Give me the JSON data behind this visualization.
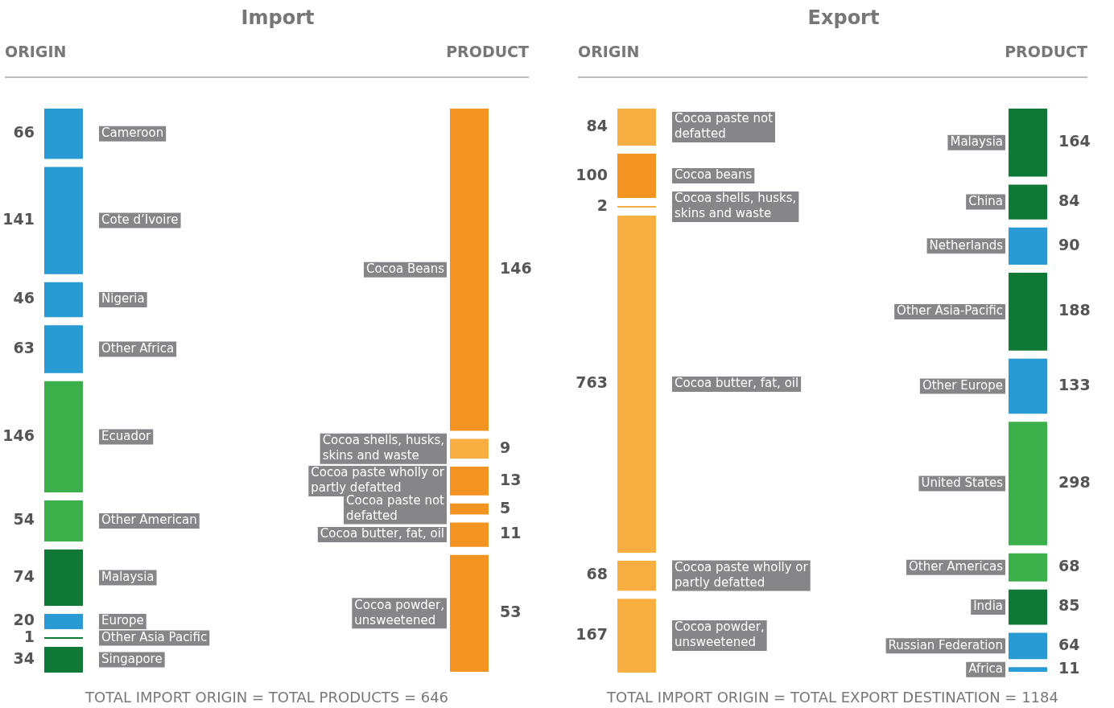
{
  "chart_data": [
    {
      "type": "other",
      "title": "Import",
      "data_labels": true,
      "categories": [
        "Cameroon",
        "Cote d’Ivoire",
        "Nigeria",
        "Other Africa",
        "Ecuador",
        "Other American",
        "Malaysia",
        "Europe",
        "Other Asia Pacific",
        "Singapore",
        "Cocoa Beans",
        "Cocoa shells, husks, skins and waste",
        "Cocoa paste wholly or partly defatted",
        "Cocoa paste not defatted",
        "Cocoa butter, fat, oil",
        "Cocoa powder, unsweetened"
      ],
      "series": [
        {
          "name": "ORIGIN",
          "values": [
            66,
            141,
            46,
            63,
            146,
            54,
            74,
            20,
            1,
            34,
            null,
            null,
            null,
            null,
            null,
            null
          ],
          "colors": [
            "#2a9ad4",
            "#2a9ad4",
            "#2a9ad4",
            "#2a9ad4",
            "#3bb04a",
            "#3bb04a",
            "#0f7a35",
            "#2a9ad4",
            "#0f7a35",
            "#0f7a35",
            null,
            null,
            null,
            null,
            null,
            null
          ]
        },
        {
          "name": "PRODUCT",
          "values": [
            null,
            null,
            null,
            null,
            null,
            null,
            null,
            null,
            null,
            null,
            146,
            9,
            13,
            5,
            11,
            53
          ],
          "colors": [
            null,
            null,
            null,
            null,
            null,
            null,
            null,
            null,
            null,
            null,
            "#f39321",
            "#f9ae42",
            "#f39321",
            "#f39321",
            "#f39321",
            "#f39321"
          ]
        }
      ],
      "annotations": [
        "TOTAL IMPORT ORIGIN = TOTAL PRODUCTS = 646"
      ]
    },
    {
      "type": "other",
      "title": "Export",
      "data_labels": true,
      "categories": [
        "Cocoa paste not defatted",
        "Cocoa beans",
        "Cocoa shells, husks, skins and waste",
        "Cocoa butter, fat, oil",
        "Cocoa paste wholly or partly defatted",
        "Cocoa powder, unsweetened",
        "Malaysia",
        "China",
        "Netherlands",
        "Other Asia-Pacific",
        "Other Europe",
        "United States",
        "Other Americas",
        "India",
        "Russian Federation",
        "Africa"
      ],
      "series": [
        {
          "name": "ORIGIN",
          "values": [
            84,
            100,
            2,
            763,
            68,
            167,
            null,
            null,
            null,
            null,
            null,
            null,
            null,
            null,
            null,
            null
          ],
          "colors": [
            "#f9ae42",
            "#f39321",
            "#f9ae42",
            "#f9ae42",
            "#f9ae42",
            "#f9ae42",
            null,
            null,
            null,
            null,
            null,
            null,
            null,
            null,
            null,
            null
          ]
        },
        {
          "name": "PRODUCT",
          "values": [
            null,
            null,
            null,
            null,
            null,
            null,
            164,
            84,
            90,
            188,
            133,
            298,
            68,
            85,
            64,
            11
          ],
          "colors": [
            null,
            null,
            null,
            null,
            null,
            null,
            "#0f7a35",
            "#0f7a35",
            "#2a9ad4",
            "#0f7a35",
            "#2a9ad4",
            "#3bb04a",
            "#3bb04a",
            "#0f7a35",
            "#2a9ad4",
            "#2a9ad4"
          ]
        }
      ],
      "annotations": [
        "TOTAL IMPORT ORIGIN = TOTAL EXPORT DESTINATION = 1184"
      ]
    }
  ]
}
